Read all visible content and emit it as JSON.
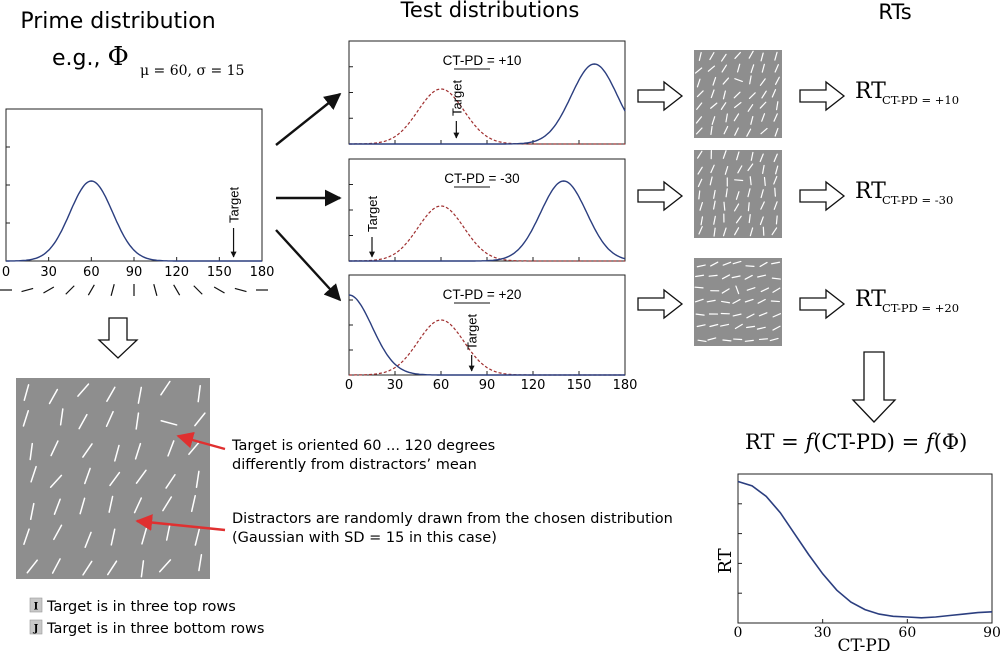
{
  "headers": {
    "prime": "Prime distribution",
    "test": "Test distributions",
    "rts": "RTs"
  },
  "prime": {
    "example_prefix": "e.g., ",
    "phi": "Φ",
    "phi_sub": "μ = 60, σ = 15",
    "mean": 60,
    "sd": 15,
    "target_label": "Target",
    "target_x": 160,
    "x_ticks": [
      "0",
      "30",
      "60",
      "90",
      "120",
      "150",
      "180"
    ],
    "xlim": [
      0,
      180
    ]
  },
  "tests": [
    {
      "label": "CT-PD = +10",
      "target_label": "Target",
      "target_x": 70,
      "prime_mean": 60,
      "test_mean": 160,
      "sd": 15,
      "rt_sub": "CT-PD = +10"
    },
    {
      "label": "CT-PD = -30",
      "target_label": "Target",
      "target_x": 15,
      "prime_mean": 60,
      "test_mean": 140,
      "sd": 15,
      "rt_sub": "CT-PD = -30"
    },
    {
      "label": "CT-PD = +20",
      "target_label": "Target",
      "target_x": 80,
      "prime_mean": 60,
      "test_mean": 0,
      "sd": 15,
      "rt_sub": "CT-PD = +20"
    }
  ],
  "test_x_ticks": [
    "0",
    "30",
    "60",
    "90",
    "120",
    "150",
    "180"
  ],
  "rt_prefix": "RT",
  "annotations": {
    "target_line1": "Target is oriented 60 ... 120 degrees",
    "target_line2": "differently from distractors’ mean",
    "distractor_line1": "Distractors are randomly drawn from the chosen distribution",
    "distractor_line2": "(Gaussian with SD = 15 in this case)"
  },
  "keys": [
    {
      "key": "I",
      "text": "Target is in three top rows"
    },
    {
      "key": "J",
      "text": "Target is in three bottom rows"
    }
  ],
  "formula": {
    "lhs": "RT = ",
    "f1": "f",
    "mid": "(CT-PD) = ",
    "f2": "f",
    "rhs": "(Φ)"
  },
  "rt_chart": {
    "ylabel": "RT",
    "xlabel": "CT-PD",
    "x_ticks": [
      "0",
      "30",
      "60",
      "90"
    ],
    "xlim": [
      0,
      90
    ],
    "curve": [
      [
        0,
        0.95
      ],
      [
        5,
        0.92
      ],
      [
        10,
        0.85
      ],
      [
        15,
        0.74
      ],
      [
        20,
        0.6
      ],
      [
        25,
        0.46
      ],
      [
        30,
        0.33
      ],
      [
        35,
        0.22
      ],
      [
        40,
        0.14
      ],
      [
        45,
        0.09
      ],
      [
        50,
        0.06
      ],
      [
        55,
        0.045
      ],
      [
        60,
        0.04
      ],
      [
        65,
        0.035
      ],
      [
        70,
        0.04
      ],
      [
        75,
        0.05
      ],
      [
        80,
        0.06
      ],
      [
        85,
        0.07
      ],
      [
        90,
        0.075
      ]
    ]
  },
  "colors": {
    "curve": "#2b3e7f",
    "dashed": "#a03030",
    "arrow_red": "#e03030",
    "stim_bg": "#8e8e8e",
    "line": "#ffffff"
  }
}
